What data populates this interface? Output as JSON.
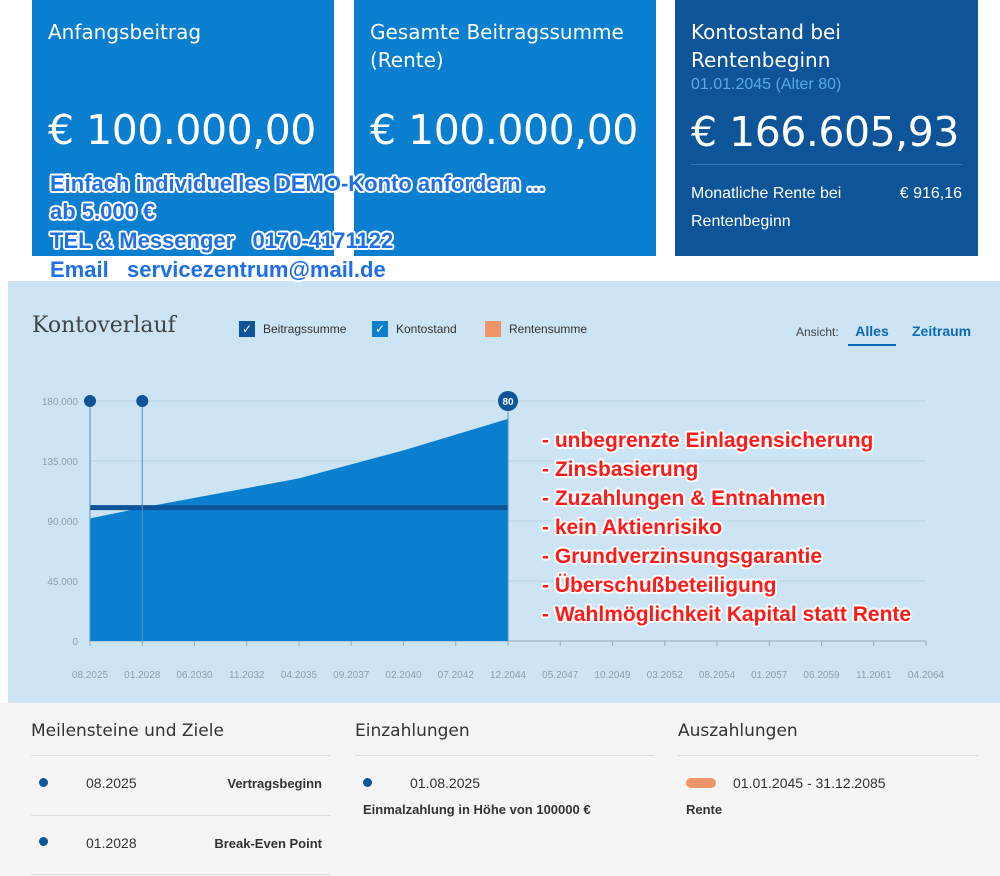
{
  "cards": [
    {
      "title": "Anfangsbeitrag",
      "amount": "€ 100.000,00"
    },
    {
      "title": "Gesamte Beitragssumme (Rente)",
      "amount": "€ 100.000,00"
    },
    {
      "title": "Kontostand bei Rentenbeginn",
      "subtitle": "01.01.2045 (Alter 80)",
      "amount": "€ 166.605,93",
      "pension_label": "Monatliche Rente bei Rentenbeginn",
      "pension_value": "€ 916,16"
    }
  ],
  "ad_blue": [
    "Einfach individuelles DEMO-Konto anfordern ...",
    "ab 5.000 €",
    "TEL & Messenger   0170-4171122",
    "Email   servicezentrum@mail.de"
  ],
  "ad_red": [
    "- unbegrenzte Einlagensicherung",
    "- Zinsbasierung",
    "- Zuzahlungen & Entnahmen",
    "- kein Aktienrisiko",
    "- Grundverzinsungsgarantie",
    "- Überschußbeteiligung",
    "- Wahlmöglichkeit Kapital statt Rente"
  ],
  "chart": {
    "title": "Kontoverlauf",
    "legend": [
      {
        "label": "Beitragssumme",
        "checked": true,
        "color": "#0d5598"
      },
      {
        "label": "Kontostand",
        "checked": true,
        "color": "#0a7fcf"
      },
      {
        "label": "Rentensumme",
        "checked": false,
        "color": "#f0956a"
      }
    ],
    "view_label": "Ansicht:",
    "view_tabs": [
      "Alles",
      "Zeitraum"
    ],
    "active_view": "Alles",
    "marker_label": "80"
  },
  "chart_data": {
    "type": "area",
    "title": "Kontoverlauf",
    "xlabel": "",
    "ylabel": "",
    "x_ticks": [
      "08.2025",
      "01.2028",
      "06.2030",
      "11.2032",
      "04.2035",
      "09.2037",
      "02.2040",
      "07.2042",
      "12.2044",
      "05.2047",
      "10.2049",
      "03.2052",
      "08.2054",
      "01.2057",
      "06.2059",
      "11.2061",
      "04.2064"
    ],
    "y_ticks": [
      "0",
      "45.000",
      "90.000",
      "135.000",
      "180.000"
    ],
    "ylim": [
      0,
      180000
    ],
    "series": [
      {
        "name": "Kontostand",
        "x": [
          "08.2025",
          "01.2028",
          "04.2035",
          "02.2040",
          "12.2044"
        ],
        "values": [
          92000,
          100000,
          122000,
          143000,
          166606
        ]
      },
      {
        "name": "Beitragssumme",
        "x": [
          "08.2025",
          "12.2044"
        ],
        "values": [
          100000,
          100000
        ]
      }
    ],
    "markers": [
      "08.2025",
      "01.2028",
      "12.2044"
    ],
    "grid": true
  },
  "bottom": {
    "milestones": {
      "heading": "Meilensteine und Ziele",
      "items": [
        {
          "date": "08.2025",
          "label": "Vertragsbeginn"
        },
        {
          "date": "01.2028",
          "label": "Break-Even Point"
        }
      ]
    },
    "payments_in": {
      "heading": "Einzahlungen",
      "date": "01.08.2025",
      "desc": "Einmalzahlung in Höhe von 100000 €"
    },
    "payments_out": {
      "heading": "Auszahlungen",
      "date": "01.01.2045 - 31.12.2085",
      "desc": "Rente"
    }
  }
}
